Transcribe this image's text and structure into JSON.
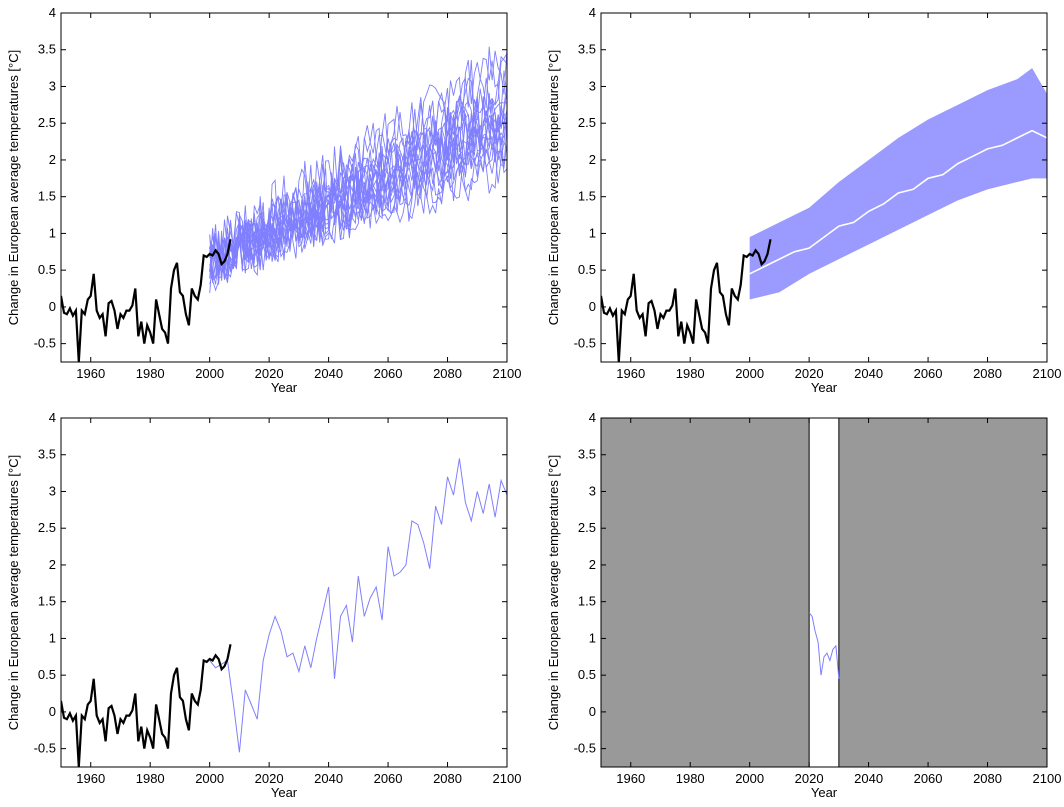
{
  "chart_data": [
    {
      "type": "line",
      "title": "",
      "xlabel": "Year",
      "ylabel": "Change in European average temperatures [°C]",
      "xlim": [
        1950,
        2100
      ],
      "ylim": [
        -0.75,
        4
      ],
      "xticks": [
        "1960",
        "1980",
        "2000",
        "2020",
        "2040",
        "2060",
        "2080",
        "2100"
      ],
      "yticks": [
        "-0.5",
        "0",
        "0.5",
        "1",
        "1.5",
        "2",
        "2.5",
        "3",
        "3.5",
        "4"
      ],
      "observed": {
        "color": "#000000",
        "x": [
          1950,
          1951,
          1952,
          1953,
          1954,
          1955,
          1956,
          1957,
          1958,
          1959,
          1960,
          1961,
          1962,
          1963,
          1964,
          1965,
          1966,
          1967,
          1968,
          1969,
          1970,
          1971,
          1972,
          1973,
          1974,
          1975,
          1976,
          1977,
          1978,
          1979,
          1980,
          1981,
          1982,
          1983,
          1984,
          1985,
          1986,
          1987,
          1988,
          1989,
          1990,
          1991,
          1992,
          1993,
          1994,
          1995,
          1996,
          1997,
          1998,
          1999,
          2000,
          2001,
          2002,
          2003,
          2004,
          2005,
          2006,
          2007
        ],
        "y": [
          0.15,
          -0.08,
          -0.1,
          -0.02,
          -0.12,
          -0.05,
          -0.75,
          -0.05,
          -0.1,
          0.1,
          0.15,
          0.45,
          -0.05,
          -0.15,
          -0.1,
          -0.4,
          0.05,
          0.08,
          -0.05,
          -0.3,
          -0.1,
          -0.15,
          -0.05,
          -0.05,
          0.02,
          0.25,
          -0.4,
          -0.2,
          -0.5,
          -0.25,
          -0.35,
          -0.5,
          0.1,
          -0.1,
          -0.3,
          -0.35,
          -0.5,
          0.25,
          0.5,
          0.6,
          0.2,
          0.15,
          -0.1,
          -0.25,
          0.25,
          0.15,
          0.1,
          0.3,
          0.7,
          0.68,
          0.72,
          0.7,
          0.77,
          0.72,
          0.58,
          0.62,
          0.72,
          0.92
        ]
      },
      "projections": {
        "color": "#7f7fff",
        "x_start": 2000,
        "x_end": 2100,
        "series": [
          {
            "start": 0.55,
            "trend": 0.022,
            "noise": 0.35,
            "seed": 1
          },
          {
            "start": 0.6,
            "trend": 0.016,
            "noise": 0.35,
            "seed": 2
          },
          {
            "start": 0.7,
            "trend": 0.024,
            "noise": 0.4,
            "seed": 3
          },
          {
            "start": 0.5,
            "trend": 0.019,
            "noise": 0.35,
            "seed": 4
          },
          {
            "start": 0.65,
            "trend": 0.021,
            "noise": 0.4,
            "seed": 5
          },
          {
            "start": 0.6,
            "trend": 0.018,
            "noise": 0.35,
            "seed": 6
          },
          {
            "start": 0.75,
            "trend": 0.025,
            "noise": 0.45,
            "seed": 7
          },
          {
            "start": 0.55,
            "trend": 0.014,
            "noise": 0.35,
            "seed": 8
          },
          {
            "start": 0.6,
            "trend": 0.02,
            "noise": 0.4,
            "seed": 9
          },
          {
            "start": 0.7,
            "trend": 0.017,
            "noise": 0.35,
            "seed": 10
          },
          {
            "start": 0.5,
            "trend": 0.023,
            "noise": 0.4,
            "seed": 11
          },
          {
            "start": 0.65,
            "trend": 0.015,
            "noise": 0.35,
            "seed": 12
          },
          {
            "start": 0.6,
            "trend": 0.022,
            "noise": 0.45,
            "seed": 13
          },
          {
            "start": 0.55,
            "trend": 0.019,
            "noise": 0.35,
            "seed": 14
          },
          {
            "start": 0.7,
            "trend": 0.026,
            "noise": 0.4,
            "seed": 15
          },
          {
            "start": 0.6,
            "trend": 0.013,
            "noise": 0.35,
            "seed": 16
          },
          {
            "start": 0.65,
            "trend": 0.02,
            "noise": 0.4,
            "seed": 17
          },
          {
            "start": 0.55,
            "trend": 0.021,
            "noise": 0.35,
            "seed": 18
          }
        ]
      }
    },
    {
      "type": "area",
      "title": "",
      "xlabel": "Year",
      "ylabel": "Change in European average temperatures [°C]",
      "xlim": [
        1950,
        2100
      ],
      "ylim": [
        -0.75,
        4
      ],
      "xticks": [
        "1960",
        "1980",
        "2000",
        "2020",
        "2040",
        "2060",
        "2080",
        "2100"
      ],
      "yticks": [
        "-0.5",
        "0",
        "0.5",
        "1",
        "1.5",
        "2",
        "2.5",
        "3",
        "3.5",
        "4"
      ],
      "band": {
        "color": "#9a9aff",
        "x": [
          2000,
          2010,
          2020,
          2030,
          2040,
          2050,
          2060,
          2070,
          2080,
          2090,
          2095,
          2100
        ],
        "lower": [
          0.1,
          0.2,
          0.45,
          0.65,
          0.85,
          1.05,
          1.25,
          1.45,
          1.6,
          1.7,
          1.75,
          1.75
        ],
        "upper": [
          0.95,
          1.15,
          1.35,
          1.7,
          2.0,
          2.3,
          2.55,
          2.75,
          2.95,
          3.1,
          3.25,
          2.9
        ]
      },
      "mean": {
        "color": "#ffffff",
        "x": [
          2000,
          2005,
          2010,
          2015,
          2020,
          2025,
          2030,
          2035,
          2040,
          2045,
          2050,
          2055,
          2060,
          2065,
          2070,
          2075,
          2080,
          2085,
          2090,
          2095,
          2100
        ],
        "y": [
          0.45,
          0.55,
          0.65,
          0.75,
          0.8,
          0.95,
          1.1,
          1.15,
          1.3,
          1.4,
          1.55,
          1.6,
          1.75,
          1.8,
          1.95,
          2.05,
          2.15,
          2.2,
          2.3,
          2.4,
          2.3
        ]
      },
      "observed_ref": "chart_data.0.observed"
    },
    {
      "type": "line",
      "title": "",
      "xlabel": "Year",
      "ylabel": "Change in European average temperatures [°C]",
      "xlim": [
        1950,
        2100
      ],
      "ylim": [
        -0.75,
        4
      ],
      "xticks": [
        "1960",
        "1980",
        "2000",
        "2020",
        "2040",
        "2060",
        "2080",
        "2100"
      ],
      "yticks": [
        "-0.5",
        "0",
        "0.5",
        "1",
        "1.5",
        "2",
        "2.5",
        "3",
        "3.5",
        "4"
      ],
      "single": {
        "color": "#7f7fff",
        "x": [
          2000,
          2002,
          2004,
          2006,
          2008,
          2010,
          2012,
          2014,
          2016,
          2018,
          2020,
          2022,
          2024,
          2026,
          2028,
          2030,
          2032,
          2034,
          2036,
          2038,
          2040,
          2042,
          2044,
          2046,
          2048,
          2050,
          2052,
          2054,
          2056,
          2058,
          2060,
          2062,
          2064,
          2066,
          2068,
          2070,
          2072,
          2074,
          2076,
          2078,
          2080,
          2082,
          2084,
          2086,
          2088,
          2090,
          2092,
          2094,
          2096,
          2098,
          2100
        ],
        "y": [
          0.7,
          0.6,
          0.65,
          0.7,
          0.1,
          -0.55,
          0.3,
          0.1,
          -0.1,
          0.7,
          1.05,
          1.3,
          1.1,
          0.75,
          0.8,
          0.55,
          0.9,
          0.6,
          1.0,
          1.35,
          1.7,
          0.45,
          1.3,
          1.45,
          0.95,
          1.85,
          1.3,
          1.55,
          1.7,
          1.25,
          2.25,
          1.85,
          1.9,
          2.0,
          2.6,
          2.55,
          2.3,
          1.95,
          2.8,
          2.55,
          3.2,
          2.95,
          3.45,
          2.85,
          2.6,
          3.0,
          2.7,
          3.1,
          2.65,
          3.15,
          2.95
        ]
      },
      "observed_ref": "chart_data.0.observed"
    },
    {
      "type": "line",
      "title": "",
      "xlabel": "Year",
      "ylabel": "Change in European average temperatures [°C]",
      "xlim": [
        1950,
        2100
      ],
      "ylim": [
        -0.75,
        4
      ],
      "xticks": [
        "1960",
        "1980",
        "2000",
        "2020",
        "2040",
        "2060",
        "2080",
        "2100"
      ],
      "yticks": [
        "-0.5",
        "0",
        "0.5",
        "1",
        "1.5",
        "2",
        "2.5",
        "3",
        "3.5",
        "4"
      ],
      "masked_regions": {
        "color": "#999999",
        "ranges": [
          [
            1950,
            2020
          ],
          [
            2030,
            2100
          ]
        ]
      },
      "window": {
        "color": "#7f7fff",
        "x": [
          2020,
          2021,
          2022,
          2023,
          2024,
          2025,
          2026,
          2027,
          2028,
          2029,
          2030
        ],
        "y": [
          1.35,
          1.3,
          1.1,
          0.95,
          0.5,
          0.75,
          0.8,
          0.7,
          0.85,
          0.9,
          0.45
        ]
      }
    }
  ]
}
